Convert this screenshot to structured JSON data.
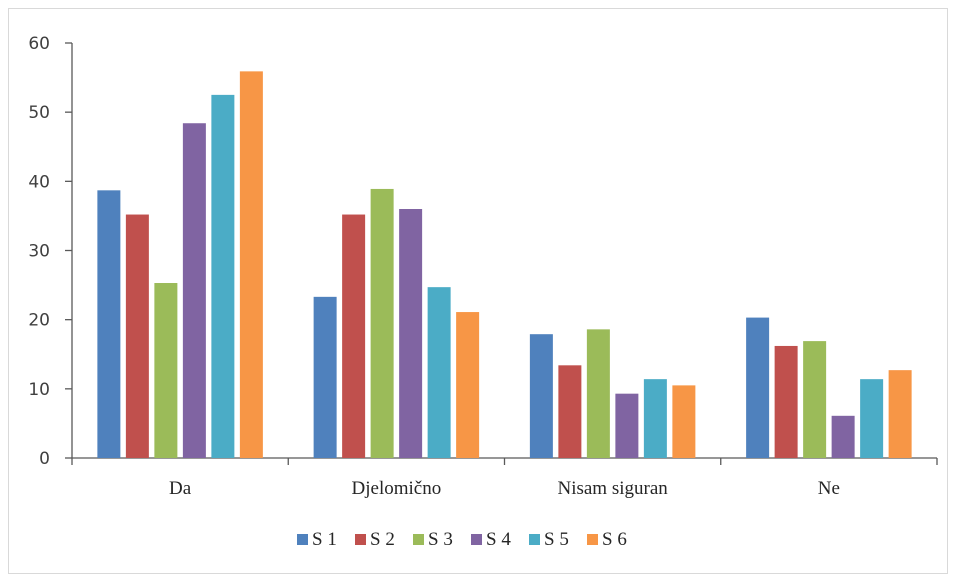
{
  "chart_data": {
    "type": "bar",
    "title": "",
    "xlabel": "",
    "ylabel": "",
    "categories": [
      "Da",
      "Djelomično",
      "Nisam siguran",
      "Ne"
    ],
    "ylim": [
      0,
      60
    ],
    "yticks": [
      0,
      10,
      20,
      30,
      40,
      50,
      60
    ],
    "grid": false,
    "legend_position": "bottom",
    "series": [
      {
        "name": "S 1",
        "color": "#4f81bd",
        "values": [
          38.7,
          23.3,
          17.9,
          20.3
        ]
      },
      {
        "name": "S 2",
        "color": "#c0504d",
        "values": [
          35.2,
          35.2,
          13.4,
          16.2
        ]
      },
      {
        "name": "S 3",
        "color": "#9bbb59",
        "values": [
          25.3,
          38.9,
          18.6,
          16.9
        ]
      },
      {
        "name": "S 4",
        "color": "#8064a2",
        "values": [
          48.4,
          36.0,
          9.3,
          6.1
        ]
      },
      {
        "name": "S 5",
        "color": "#4bacc6",
        "values": [
          52.5,
          24.7,
          11.4,
          11.4
        ]
      },
      {
        "name": "S 6",
        "color": "#f79646",
        "values": [
          55.9,
          21.1,
          10.5,
          12.7
        ]
      }
    ]
  }
}
